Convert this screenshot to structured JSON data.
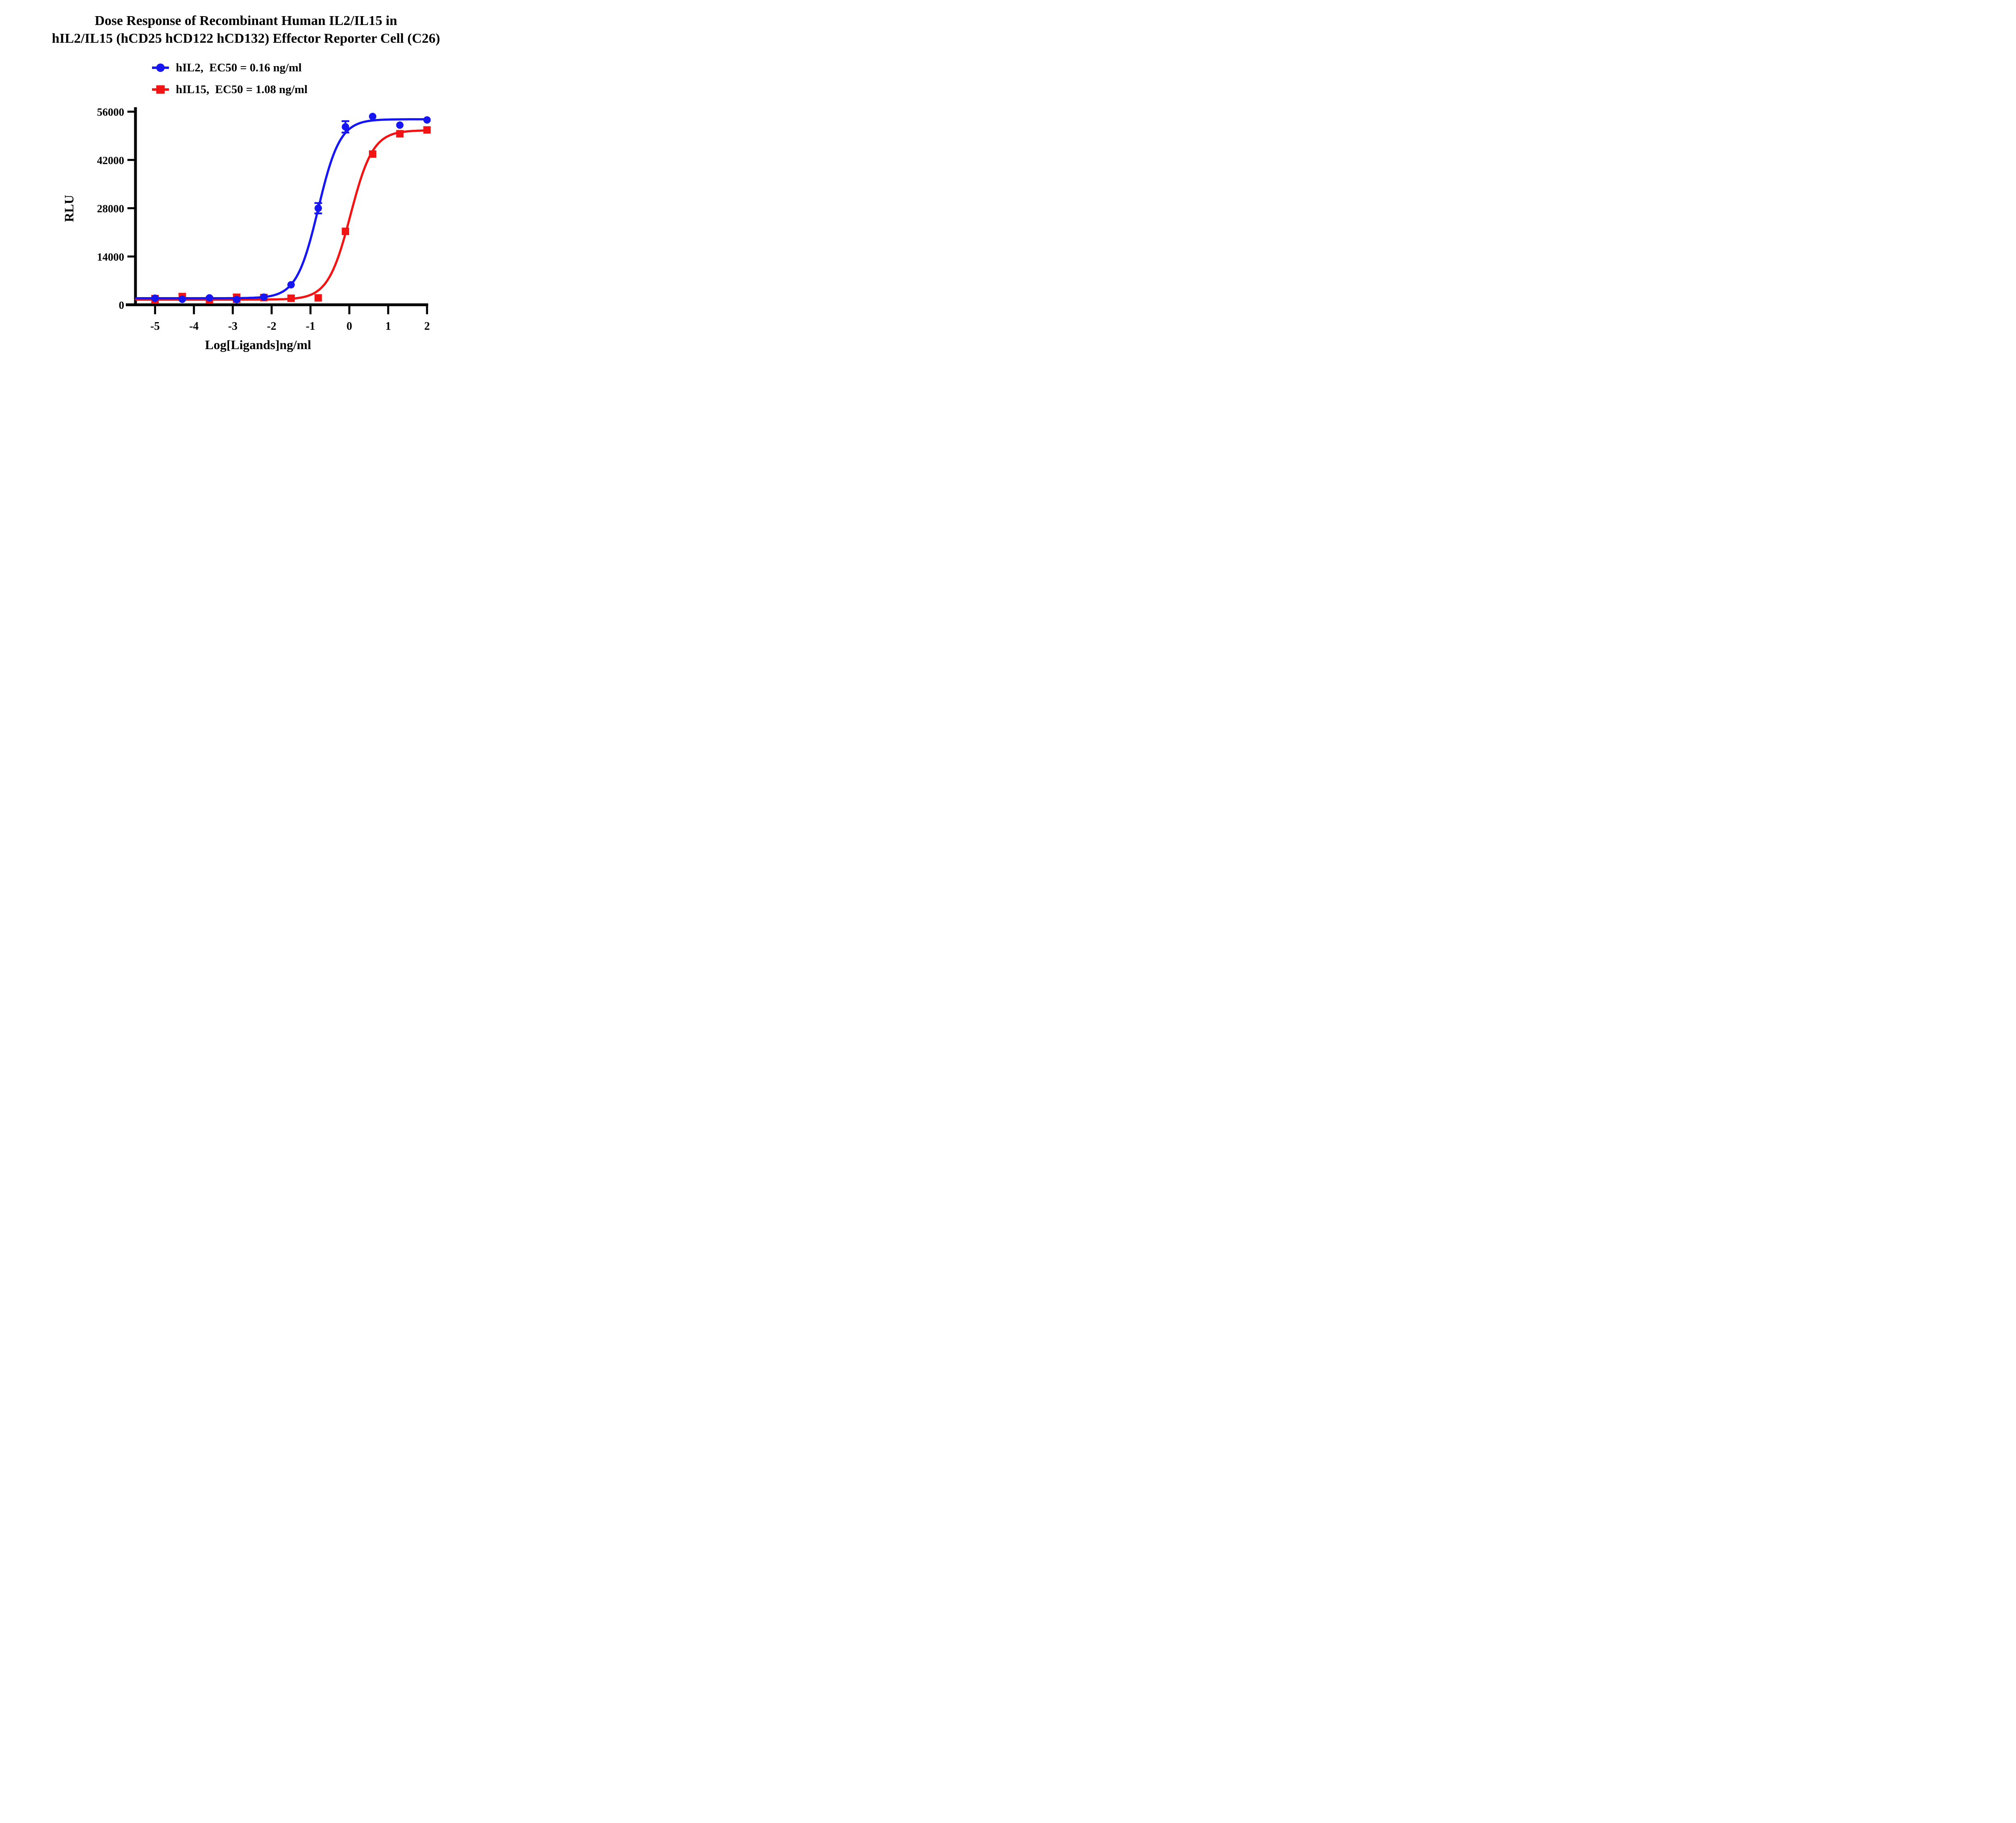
{
  "title": {
    "line1": "Dose Response of Recombinant Human IL2/IL15 in",
    "line2": "hIL2/IL15 (hCD25 hCD122 hCD132) Effector Reporter Cell (C26)"
  },
  "legend": [
    {
      "label": "hIL2,  EC50 = 0.16 ng/ml",
      "color": "#1616f0",
      "marker": "circle"
    },
    {
      "label": "hIL15,  EC50 = 1.08 ng/ml",
      "color": "#f11414",
      "marker": "square"
    }
  ],
  "chart_data": {
    "type": "scatter",
    "title": "Dose Response of Recombinant Human IL2/IL15 in hIL2/IL15 (hCD25 hCD122 hCD132) Effector Reporter Cell (C26)",
    "xlabel": "Log[Ligands]ng/ml",
    "ylabel": "RLU",
    "xlim": [
      -5.5,
      2.05
    ],
    "ylim": [
      0,
      56000
    ],
    "x_ticks": [
      -5,
      -4,
      -3,
      -2,
      -1,
      0,
      1,
      2
    ],
    "y_ticks": [
      0,
      14000,
      28000,
      42000,
      56000
    ],
    "grid": false,
    "legend_position": "top-left",
    "series": [
      {
        "name": "hIL15",
        "color": "#f11414",
        "marker": "square",
        "ec50_ng_ml": 1.08,
        "x": [
          -5,
          -4.3,
          -3.6,
          -2.9,
          -2.2,
          -1.5,
          -0.8,
          -0.1,
          0.6,
          1.3,
          2
        ],
        "y": [
          1600,
          2300,
          1400,
          1900,
          2100,
          1900,
          2000,
          21300,
          43700,
          49600,
          50700
        ],
        "yerr": [
          1000,
          900,
          0,
          1100,
          800,
          0,
          0,
          0,
          0,
          0,
          0
        ],
        "fit": {
          "bottom": 1500,
          "top": 50600,
          "log_ec50": 0.03,
          "hill": 1.5
        }
      },
      {
        "name": "hIL2",
        "color": "#1616f0",
        "marker": "circle",
        "ec50_ng_ml": 0.16,
        "x": [
          -5,
          -4.3,
          -3.6,
          -2.9,
          -2.2,
          -1.5,
          -0.8,
          -0.1,
          0.6,
          1.3,
          2
        ],
        "y": [
          1900,
          1600,
          2000,
          1500,
          2200,
          5800,
          28000,
          51600,
          54600,
          52100,
          53600
        ],
        "yerr": [
          0,
          0,
          0,
          0,
          0,
          0,
          1500,
          1650,
          0,
          0,
          0
        ],
        "fit": {
          "bottom": 1900,
          "top": 53800,
          "log_ec50": -0.8,
          "hill": 1.55
        }
      }
    ]
  }
}
